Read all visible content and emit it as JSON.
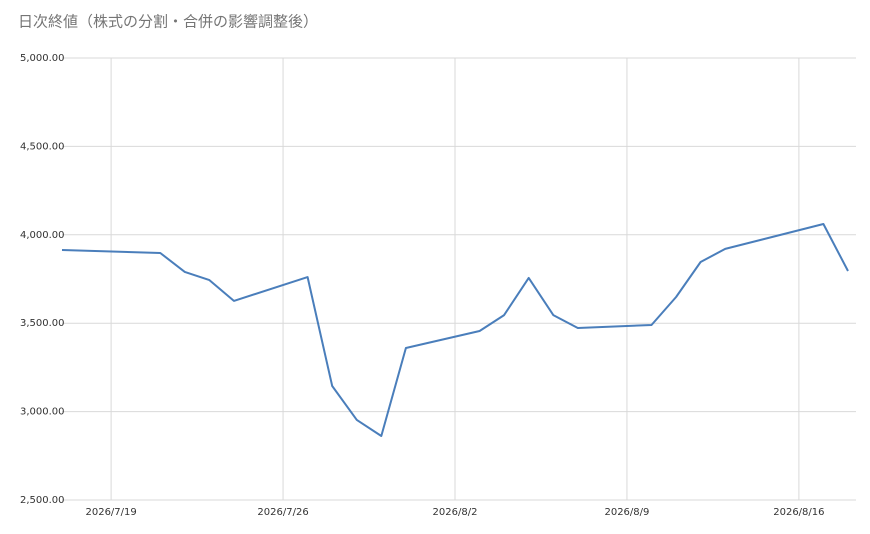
{
  "chart_data": {
    "type": "line",
    "title": "日次終値（株式の分割・合併の影響調整後）",
    "x": [
      "2026/7/17",
      "2026/7/21",
      "2026/7/22",
      "2026/7/23",
      "2026/7/24",
      "2026/7/27",
      "2026/7/28",
      "2026/7/29",
      "2026/7/30",
      "2026/7/31",
      "2026/8/3",
      "2026/8/4",
      "2026/8/5",
      "2026/8/6",
      "2026/8/7",
      "2026/8/10",
      "2026/8/11",
      "2026/8/12",
      "2026/8/13",
      "2026/8/17",
      "2026/8/18"
    ],
    "series": [
      {
        "color": "#4a7ebb",
        "values": [
          3914,
          3897,
          3790,
          3744,
          3626,
          3761,
          3145,
          2953,
          2862,
          3360,
          3456,
          3546,
          3756,
          3546,
          3473,
          3490,
          3648,
          3846,
          3920,
          4061,
          3795
        ]
      }
    ],
    "xlim": [
      "2026/7/17",
      "2026/8/18"
    ],
    "xticks": [
      "2026/7/19",
      "2026/7/26",
      "2026/8/2",
      "2026/8/9",
      "2026/8/16"
    ],
    "ylim": [
      2500,
      5000
    ],
    "yticks": [
      {
        "value": 2500,
        "label": "2,500.00"
      },
      {
        "value": 3000,
        "label": "3,000.00"
      },
      {
        "value": 3500,
        "label": "3,500.00"
      },
      {
        "value": 4000,
        "label": "4,000.00"
      },
      {
        "value": 4500,
        "label": "4,500.00"
      },
      {
        "value": 5000,
        "label": "5,000.00"
      }
    ],
    "grid": true
  }
}
